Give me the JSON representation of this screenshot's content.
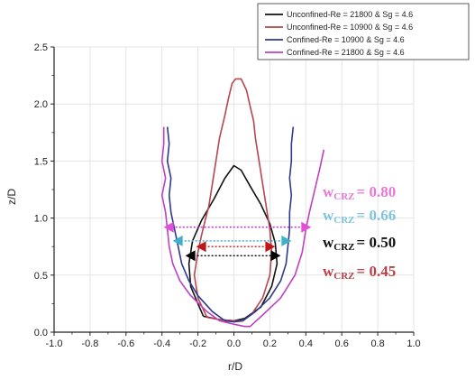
{
  "chart_data": {
    "type": "line",
    "xlabel": "r/D",
    "ylabel": "z/D",
    "xlim": [
      -1.0,
      1.0
    ],
    "ylim": [
      0.0,
      2.5
    ],
    "x_ticks": [
      "-1.0",
      "-0.8",
      "-0.6",
      "-0.4",
      "-0.2",
      "0.0",
      "0.2",
      "0.4",
      "0.6",
      "0.8",
      "1.0"
    ],
    "y_ticks": [
      "0.0",
      "0.5",
      "1.0",
      "1.5",
      "2.0",
      "2.5"
    ],
    "grid": true,
    "legend_position": "top-right",
    "series": [
      {
        "name": "Unconfined-Re = 21800 & Sg = 4.6",
        "color": "#111111",
        "points": [
          [
            -0.17,
            0.14
          ],
          [
            -0.2,
            0.25
          ],
          [
            -0.24,
            0.4
          ],
          [
            -0.25,
            0.6
          ],
          [
            -0.23,
            0.8
          ],
          [
            -0.18,
            0.98
          ],
          [
            -0.11,
            1.17
          ],
          [
            -0.05,
            1.35
          ],
          [
            0.0,
            1.46
          ],
          [
            0.04,
            1.42
          ],
          [
            0.09,
            1.28
          ],
          [
            0.15,
            1.12
          ],
          [
            0.2,
            0.95
          ],
          [
            0.23,
            0.78
          ],
          [
            0.24,
            0.6
          ],
          [
            0.21,
            0.4
          ],
          [
            0.15,
            0.22
          ],
          [
            0.06,
            0.12
          ],
          [
            0.0,
            0.1
          ],
          [
            -0.08,
            0.11
          ],
          [
            -0.17,
            0.14
          ]
        ]
      },
      {
        "name": "Unconfined-Re = 10900 & Sg = 4.6",
        "color": "#b8454f",
        "points": [
          [
            -0.15,
            0.13
          ],
          [
            -0.2,
            0.3
          ],
          [
            -0.22,
            0.5
          ],
          [
            -0.2,
            0.7
          ],
          [
            -0.18,
            0.85
          ],
          [
            -0.16,
            0.98
          ],
          [
            -0.14,
            1.1
          ],
          [
            -0.12,
            1.3
          ],
          [
            -0.1,
            1.5
          ],
          [
            -0.08,
            1.7
          ],
          [
            -0.05,
            1.9
          ],
          [
            -0.03,
            2.05
          ],
          [
            -0.01,
            2.18
          ],
          [
            0.01,
            2.22
          ],
          [
            0.04,
            2.22
          ],
          [
            0.07,
            2.12
          ],
          [
            0.09,
            1.98
          ],
          [
            0.11,
            1.85
          ],
          [
            0.12,
            1.7
          ],
          [
            0.14,
            1.5
          ],
          [
            0.16,
            1.3
          ],
          [
            0.18,
            1.1
          ],
          [
            0.2,
            0.9
          ],
          [
            0.21,
            0.7
          ],
          [
            0.2,
            0.5
          ],
          [
            0.16,
            0.3
          ],
          [
            0.1,
            0.16
          ],
          [
            0.05,
            0.1
          ],
          [
            0.0,
            0.1
          ],
          [
            -0.08,
            0.11
          ],
          [
            -0.15,
            0.13
          ]
        ]
      },
      {
        "name": "Confined-Re = 10900 & Sg = 4.6",
        "color": "#2e3a8c",
        "points": [
          [
            -0.37,
            1.8
          ],
          [
            -0.36,
            1.65
          ],
          [
            -0.37,
            1.5
          ],
          [
            -0.35,
            1.35
          ],
          [
            -0.36,
            1.2
          ],
          [
            -0.35,
            1.05
          ],
          [
            -0.33,
            0.9
          ],
          [
            -0.31,
            0.75
          ],
          [
            -0.29,
            0.6
          ],
          [
            -0.25,
            0.45
          ],
          [
            -0.2,
            0.32
          ],
          [
            -0.12,
            0.18
          ],
          [
            -0.05,
            0.1
          ],
          [
            0.0,
            0.09
          ],
          [
            0.05,
            0.1
          ],
          [
            0.12,
            0.18
          ],
          [
            0.2,
            0.3
          ],
          [
            0.26,
            0.45
          ],
          [
            0.29,
            0.6
          ],
          [
            0.3,
            0.75
          ],
          [
            0.31,
            0.9
          ],
          [
            0.31,
            1.05
          ],
          [
            0.32,
            1.2
          ],
          [
            0.31,
            1.35
          ],
          [
            0.32,
            1.5
          ],
          [
            0.32,
            1.65
          ],
          [
            0.33,
            1.8
          ]
        ]
      },
      {
        "name": "Confined-Re = 21800 & Sg = 4.6",
        "color": "#c040c0",
        "points": [
          [
            -0.39,
            1.8
          ],
          [
            -0.39,
            1.65
          ],
          [
            -0.4,
            1.5
          ],
          [
            -0.38,
            1.35
          ],
          [
            -0.4,
            1.2
          ],
          [
            -0.38,
            1.05
          ],
          [
            -0.37,
            0.9
          ],
          [
            -0.36,
            0.75
          ],
          [
            -0.34,
            0.6
          ],
          [
            -0.3,
            0.45
          ],
          [
            -0.24,
            0.32
          ],
          [
            -0.15,
            0.18
          ],
          [
            -0.08,
            0.1
          ],
          [
            0.0,
            0.07
          ],
          [
            0.06,
            0.05
          ],
          [
            0.09,
            0.05
          ],
          [
            0.16,
            0.15
          ],
          [
            0.26,
            0.3
          ],
          [
            0.34,
            0.5
          ],
          [
            0.38,
            0.7
          ],
          [
            0.4,
            0.9
          ],
          [
            0.42,
            1.05
          ],
          [
            0.45,
            1.25
          ],
          [
            0.48,
            1.45
          ],
          [
            0.5,
            1.6
          ]
        ]
      }
    ],
    "annotations": [
      {
        "prefix": "w",
        "sub": "CRZ",
        "value": "= 0.80",
        "color": "#e878d8",
        "y": 0.92,
        "x_from": -0.39,
        "x_to": 0.43,
        "arrow_color": "#e050d8",
        "dash_color": "#d020d0"
      },
      {
        "prefix": "w",
        "sub": "CRZ",
        "value": "= 0.66",
        "color": "#7ec4dc",
        "y": 0.8,
        "x_from": -0.34,
        "x_to": 0.32,
        "arrow_color": "#40b0c8",
        "dash_color": "#40b0c8"
      },
      {
        "prefix": "w",
        "sub": "CRZ",
        "value": "= 0.50",
        "color": "#111111",
        "y": 0.67,
        "x_from": -0.27,
        "x_to": 0.26,
        "arrow_color": "#000000",
        "dash_color": "#000000"
      },
      {
        "prefix": "w",
        "sub": "CRZ",
        "value": "= 0.45",
        "color": "#b84048",
        "y": 0.75,
        "x_from": -0.21,
        "x_to": 0.23,
        "arrow_color": "#c01818",
        "dash_color": "#c01818"
      }
    ]
  }
}
